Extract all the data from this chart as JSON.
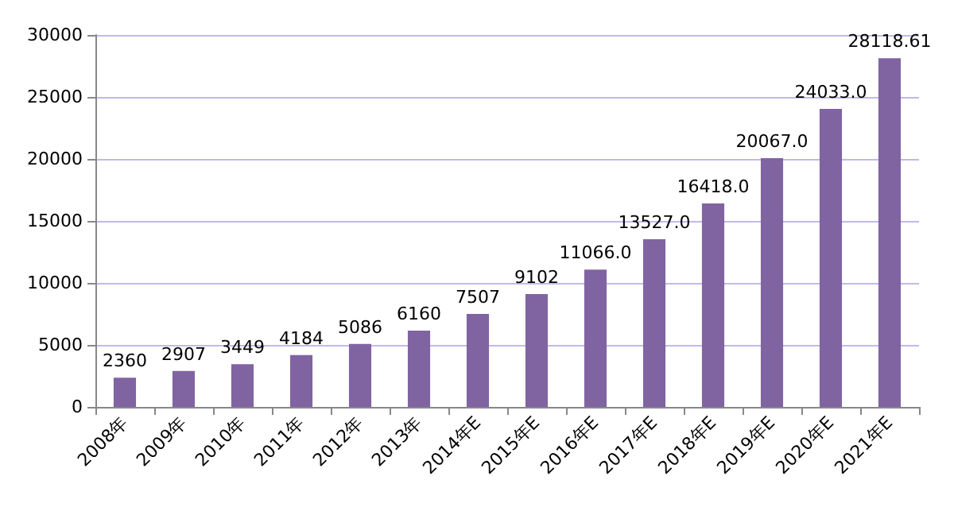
{
  "chart_data": {
    "type": "bar",
    "categories": [
      "2008年",
      "2009年",
      "2010年",
      "2011年",
      "2012年",
      "2013年",
      "2014年E",
      "2015年E",
      "2016年E",
      "2017年E",
      "2018年E",
      "2019年E",
      "2020年E",
      "2021年E"
    ],
    "values": [
      2360,
      2907,
      3449,
      4184,
      5086,
      6160,
      7507,
      9102,
      11066,
      13527,
      16418,
      20067,
      24033,
      28118.61
    ],
    "value_labels": [
      "2360",
      "2907",
      "3449",
      "4184",
      "5086",
      "6160",
      "7507",
      "9102",
      "11066.0",
      "13527.0",
      "16418.0",
      "20067.0",
      "24033.0",
      "28118.61"
    ],
    "color": "#8064a2",
    "ylim": [
      0,
      30000
    ],
    "yticks": [
      0,
      5000,
      10000,
      15000,
      20000,
      25000,
      30000
    ],
    "grid": "y"
  }
}
